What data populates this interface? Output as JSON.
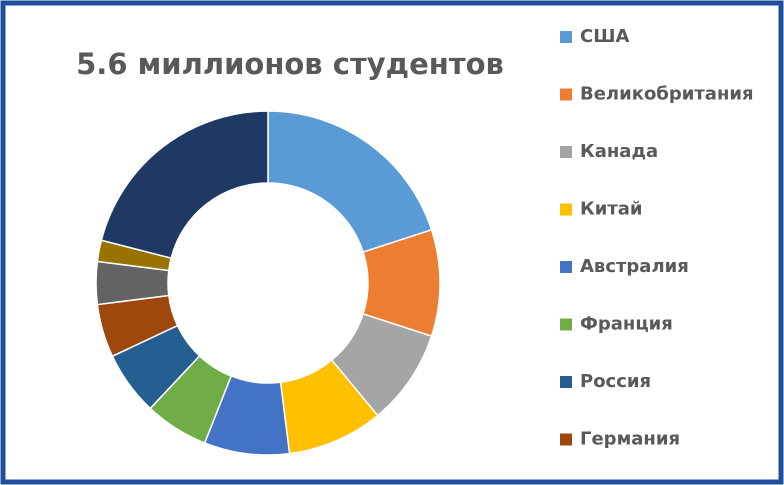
{
  "chart_data": {
    "type": "donut",
    "title": "5.6 миллионов студентов",
    "categories": [
      "США",
      "Великобритания",
      "Канада",
      "Китай",
      "Австралия",
      "Франция",
      "Россия",
      "Германия",
      null,
      null,
      null
    ],
    "values": [
      20,
      10,
      9,
      9,
      8,
      6,
      6,
      5,
      4,
      2,
      21
    ],
    "colors": [
      "#5b9bd5",
      "#ed7d31",
      "#a5a5a5",
      "#ffc000",
      "#4472c4",
      "#70ad47",
      "#255e91",
      "#9e480e",
      "#636363",
      "#997300",
      "#1f3864"
    ]
  }
}
